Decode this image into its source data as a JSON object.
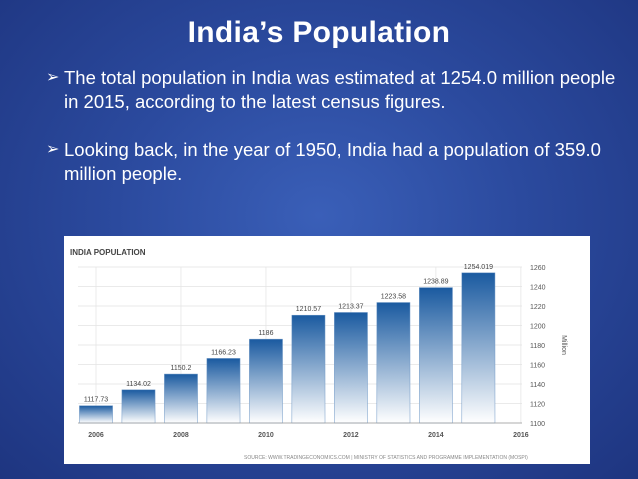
{
  "slide": {
    "title": "India’s Population",
    "bullet_marker": "➢",
    "bullets": [
      "The total population in India was estimated at 1254.0 million people in 2015, according to the latest census figures.",
      "Looking back, in the year of 1950, India had a population of 359.0 million people."
    ]
  },
  "chart_data": {
    "type": "bar",
    "title": "INDIA POPULATION",
    "categories": [
      "2006",
      "2007",
      "2008",
      "2009",
      "2010",
      "2011",
      "2012",
      "2013",
      "2014",
      "2015"
    ],
    "values": [
      1117.73,
      1134.02,
      1150.2,
      1166.23,
      1186,
      1210.57,
      1213.37,
      1223.58,
      1238.89,
      1254.019
    ],
    "value_labels": [
      "1117.73",
      "1134.02",
      "1150.2",
      "1166.23",
      "1186",
      "1210.57",
      "1213.37",
      "1223.58",
      "1238.89",
      "1254.019"
    ],
    "x_tick_labels": [
      "2006",
      "2008",
      "2010",
      "2012",
      "2014",
      "2016"
    ],
    "y_ticks": [
      1100,
      1120,
      1140,
      1160,
      1180,
      1200,
      1220,
      1240,
      1260
    ],
    "ylim": [
      1100,
      1260
    ],
    "ylabel": "Million",
    "y_axis_side": "right",
    "grid": true,
    "source": "SOURCE: WWW.TRADINGECONOMICS.COM | MINISTRY OF STATISTICS AND PROGRAMME IMPLEMENTATION (MOSPI)",
    "colors": {
      "bar_top": "#1a5aa0",
      "bar_bottom": "#ffffff",
      "text": "#444444",
      "grid": "#e3e3e3"
    }
  }
}
